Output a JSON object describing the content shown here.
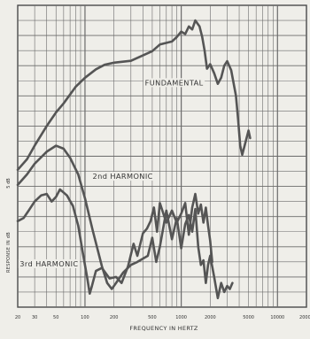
{
  "chart_data": {
    "type": "line",
    "xlabel": "FREQUENCY IN HERTZ",
    "ylabel": "RESPONSE IN dB",
    "scale_label": "5 dB",
    "x_scale": "log",
    "xlim": [
      20,
      20000
    ],
    "ylim": [
      0,
      100
    ],
    "grid": true,
    "x_ticks": [
      {
        "value": 20,
        "label": "20"
      },
      {
        "value": 30,
        "label": "30"
      },
      {
        "value": 50,
        "label": "50"
      },
      {
        "value": 100,
        "label": "100"
      },
      {
        "value": 200,
        "label": "200"
      },
      {
        "value": 500,
        "label": "500"
      },
      {
        "value": 1000,
        "label": "1000"
      },
      {
        "value": 2000,
        "label": "2000"
      },
      {
        "value": 5000,
        "label": "5000"
      },
      {
        "value": 10000,
        "label": "10000"
      },
      {
        "value": 20000,
        "label": "20000"
      }
    ],
    "annotations": [
      {
        "text": "FUNDAMENTAL",
        "x": 420,
        "y": 73.5
      },
      {
        "text": "2nd HARMONIC",
        "x": 120,
        "y": 42.5
      },
      {
        "text": "3rd HARMONIC",
        "x": 21,
        "y": 13.5
      }
    ],
    "series": [
      {
        "id": "fundamental",
        "color": "#555555",
        "points": [
          [
            20,
            45.5
          ],
          [
            25,
            49
          ],
          [
            30,
            53.5
          ],
          [
            40,
            60
          ],
          [
            50,
            64.5
          ],
          [
            60,
            67.5
          ],
          [
            80,
            73
          ],
          [
            100,
            76
          ],
          [
            130,
            78.8
          ],
          [
            160,
            80.3
          ],
          [
            200,
            81
          ],
          [
            300,
            81.6
          ],
          [
            400,
            83.4
          ],
          [
            500,
            84.8
          ],
          [
            600,
            87
          ],
          [
            800,
            88
          ],
          [
            900,
            89.5
          ],
          [
            1000,
            91.3
          ],
          [
            1100,
            90.5
          ],
          [
            1200,
            93
          ],
          [
            1300,
            92
          ],
          [
            1400,
            95
          ],
          [
            1550,
            93
          ],
          [
            1650,
            89.5
          ],
          [
            1750,
            85
          ],
          [
            1850,
            79
          ],
          [
            2000,
            80.5
          ],
          [
            2200,
            77.5
          ],
          [
            2400,
            74
          ],
          [
            2600,
            76
          ],
          [
            2800,
            80
          ],
          [
            3000,
            81.5
          ],
          [
            3300,
            78.5
          ],
          [
            3700,
            70
          ],
          [
            3900,
            62
          ],
          [
            4100,
            53.5
          ],
          [
            4300,
            50.5
          ],
          [
            4600,
            54
          ],
          [
            5000,
            58.5
          ],
          [
            5200,
            56
          ]
        ]
      },
      {
        "id": "2nd-harmonic",
        "color": "#555555",
        "points": [
          [
            20,
            40.5
          ],
          [
            25,
            44
          ],
          [
            30,
            47.5
          ],
          [
            40,
            51.5
          ],
          [
            50,
            53.5
          ],
          [
            60,
            52.5
          ],
          [
            70,
            49.5
          ],
          [
            85,
            44
          ],
          [
            100,
            36
          ],
          [
            120,
            25.5
          ],
          [
            150,
            13.5
          ],
          [
            170,
            8
          ],
          [
            190,
            6
          ],
          [
            210,
            8
          ],
          [
            250,
            11.5
          ],
          [
            300,
            14
          ],
          [
            350,
            15
          ],
          [
            450,
            17
          ],
          [
            500,
            23
          ],
          [
            550,
            15
          ],
          [
            600,
            20
          ],
          [
            700,
            32
          ],
          [
            800,
            22.5
          ],
          [
            900,
            29.5
          ],
          [
            1000,
            19.5
          ],
          [
            1100,
            27.5
          ],
          [
            1200,
            30.5
          ],
          [
            1300,
            25
          ],
          [
            1400,
            32.5
          ],
          [
            1500,
            20
          ],
          [
            1600,
            14
          ],
          [
            1700,
            15.5
          ],
          [
            1800,
            8
          ],
          [
            1900,
            14
          ],
          [
            2000,
            17
          ],
          [
            2200,
            10
          ],
          [
            2400,
            3
          ],
          [
            2600,
            8
          ],
          [
            2800,
            5
          ],
          [
            3000,
            7
          ],
          [
            3200,
            6
          ],
          [
            3400,
            8
          ]
        ]
      },
      {
        "id": "3rd-harmonic",
        "color": "#555555",
        "points": [
          [
            20,
            28.5
          ],
          [
            23,
            29.5
          ],
          [
            26,
            32
          ],
          [
            30,
            35
          ],
          [
            35,
            37
          ],
          [
            40,
            37.5
          ],
          [
            45,
            35
          ],
          [
            50,
            36.5
          ],
          [
            55,
            39
          ],
          [
            65,
            37
          ],
          [
            75,
            33.5
          ],
          [
            85,
            27
          ],
          [
            95,
            18
          ],
          [
            105,
            10
          ],
          [
            112,
            4.5
          ],
          [
            118,
            7
          ],
          [
            130,
            12
          ],
          [
            150,
            13
          ],
          [
            180,
            9.5
          ],
          [
            210,
            10
          ],
          [
            240,
            8
          ],
          [
            280,
            13.5
          ],
          [
            320,
            21
          ],
          [
            350,
            17
          ],
          [
            400,
            24.5
          ],
          [
            440,
            26
          ],
          [
            480,
            28.5
          ],
          [
            520,
            33
          ],
          [
            560,
            25
          ],
          [
            600,
            34.5
          ],
          [
            700,
            28
          ],
          [
            800,
            32
          ],
          [
            900,
            28
          ],
          [
            1000,
            31
          ],
          [
            1100,
            34.5
          ],
          [
            1200,
            24
          ],
          [
            1300,
            33
          ],
          [
            1400,
            37.5
          ],
          [
            1500,
            31
          ],
          [
            1600,
            34
          ],
          [
            1700,
            28
          ],
          [
            1800,
            33
          ],
          [
            1900,
            27
          ],
          [
            2000,
            22
          ],
          [
            2100,
            15
          ]
        ]
      }
    ]
  }
}
